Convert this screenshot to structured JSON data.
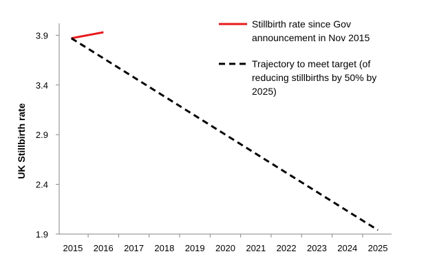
{
  "chart_data": {
    "type": "line",
    "ylabel": "UK Stillbirth rate",
    "xlabel": "",
    "x": [
      2015,
      2016,
      2017,
      2018,
      2019,
      2020,
      2021,
      2022,
      2023,
      2024,
      2025
    ],
    "x_tick_labels": [
      "2015",
      "2016",
      "2017",
      "2018",
      "2019",
      "2020",
      "2021",
      "2022",
      "2023",
      "2024",
      "2025"
    ],
    "xlim": [
      2014.55,
      2025.45
    ],
    "ylim": [
      1.9,
      4.02
    ],
    "y_ticks": [
      1.9,
      2.4,
      2.9,
      3.4,
      3.9
    ],
    "y_tick_labels": [
      "1.9",
      "2.4",
      "2.9",
      "3.4",
      "3.9"
    ],
    "grid": false,
    "legend_position": "top-right",
    "series": [
      {
        "name": "Stillbirth rate since Gov announcement in Nov 2015",
        "name_lines": [
          "Stillbirth rate since Gov",
          "announcement in Nov 2015"
        ],
        "color": "#e8191c",
        "style": "solid",
        "points": [
          [
            2014.95,
            3.87
          ],
          [
            2016.0,
            3.93
          ]
        ]
      },
      {
        "name": "Trajectory to meet target (of reducing stillbirths by 50% by 2025)",
        "name_lines": [
          "Trajectory to meet target (of",
          "reducing stillbirths by 50% by",
          "2025)"
        ],
        "color": "#000000",
        "style": "dashed",
        "points": [
          [
            2014.95,
            3.87
          ],
          [
            2025.0,
            1.94
          ]
        ]
      }
    ]
  }
}
